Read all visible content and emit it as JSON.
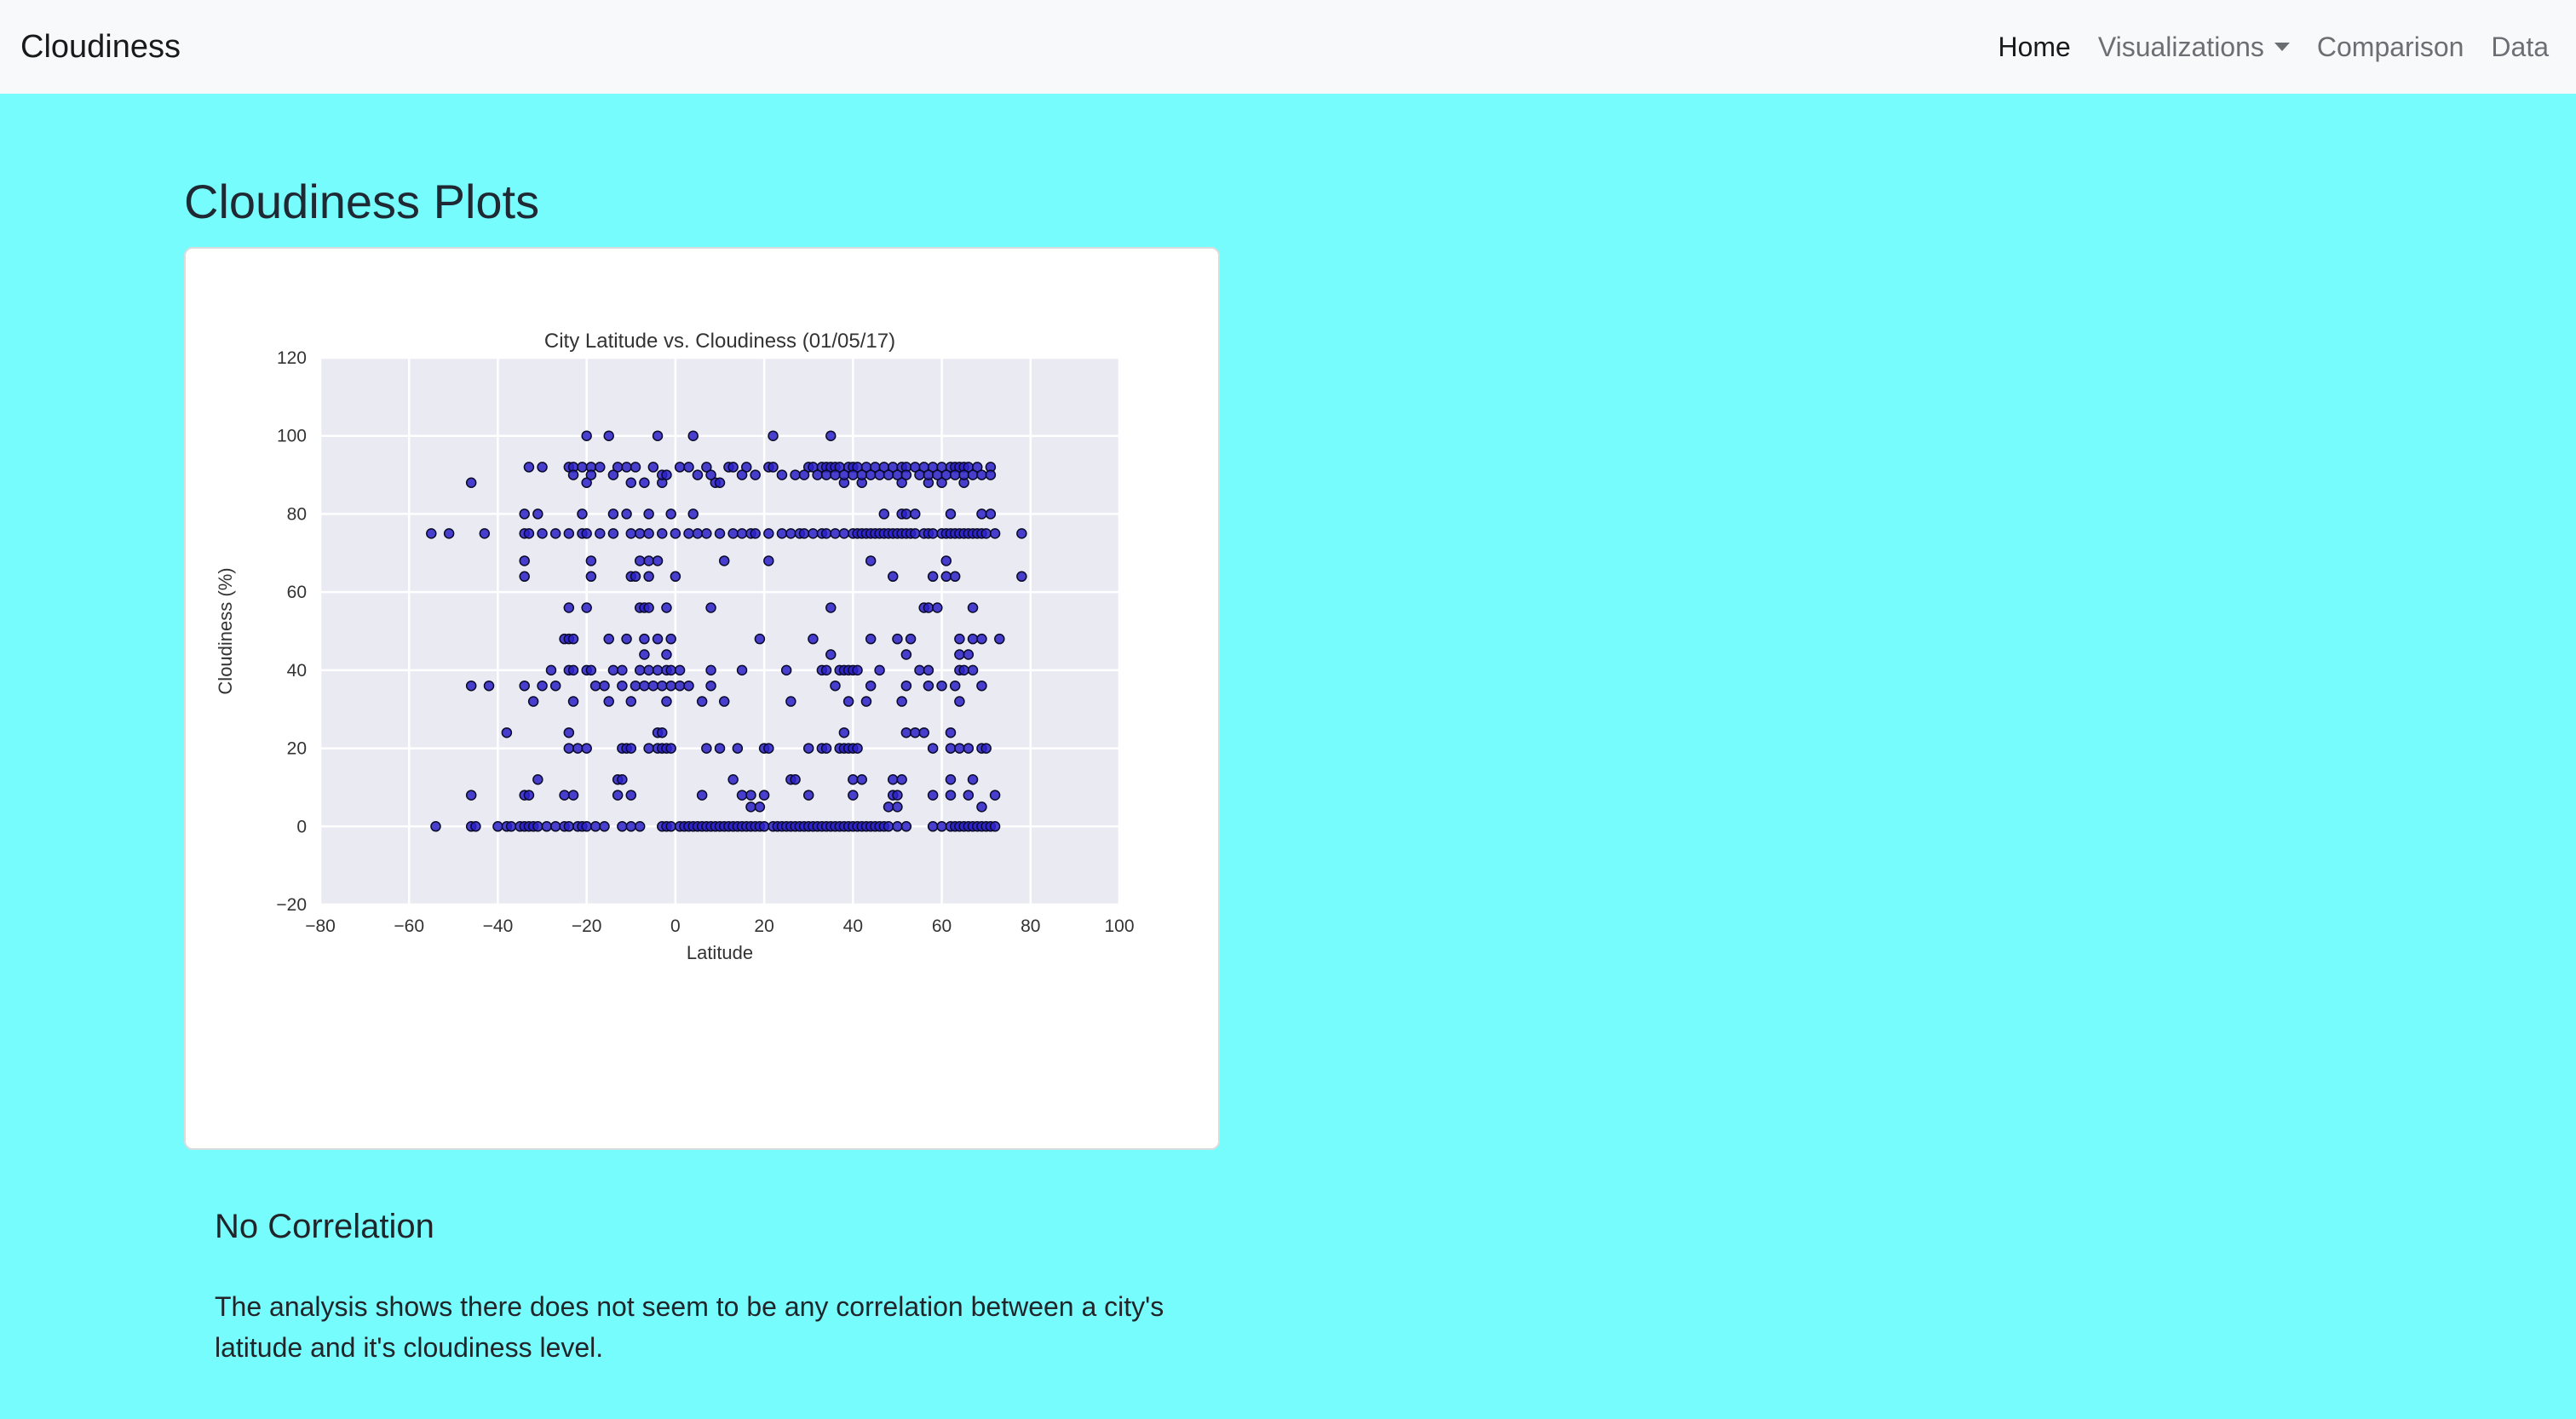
{
  "navbar": {
    "brand": "Cloudiness",
    "links": {
      "home": "Home",
      "visualizations": "Visualizations",
      "comparison": "Comparison",
      "data": "Data"
    }
  },
  "page": {
    "title": "Cloudiness Plots"
  },
  "card": {
    "title": "No Correlation",
    "text": "The analysis shows there does not seem to be any correlation between a city's latitude and it's cloudiness level."
  },
  "colors": {
    "background": "#76fcfd",
    "navbar": "#f8f9fa",
    "plot_bg": "#eaeaf2",
    "point_fill": "#2a20c8",
    "point_edge": "#0a0a2a"
  },
  "chart_data": {
    "type": "scatter",
    "title": "City Latitude vs. Cloudiness (01/05/17)",
    "xlabel": "Latitude",
    "ylabel": "Cloudiness (%)",
    "xlim": [
      -80,
      100
    ],
    "ylim": [
      -20,
      120
    ],
    "xticks": [
      "−80",
      "−60",
      "−40",
      "−20",
      "0",
      "20",
      "40",
      "60",
      "80",
      "100"
    ],
    "yticks": [
      "−20",
      "0",
      "20",
      "40",
      "60",
      "80",
      "100",
      "120"
    ],
    "grid": true,
    "legend": "none",
    "points": [
      [
        -54,
        0
      ],
      [
        -46,
        0
      ],
      [
        -45,
        0
      ],
      [
        -40,
        0
      ],
      [
        -38,
        0
      ],
      [
        -37,
        0
      ],
      [
        -35,
        0
      ],
      [
        -34,
        0
      ],
      [
        -33,
        0
      ],
      [
        -32,
        0
      ],
      [
        -31,
        0
      ],
      [
        -29,
        0
      ],
      [
        -27,
        0
      ],
      [
        -25,
        0
      ],
      [
        -24,
        0
      ],
      [
        -22,
        0
      ],
      [
        -21,
        0
      ],
      [
        -20,
        0
      ],
      [
        -18,
        0
      ],
      [
        -16,
        0
      ],
      [
        -12,
        0
      ],
      [
        -10,
        0
      ],
      [
        -8,
        0
      ],
      [
        -3,
        0
      ],
      [
        -2,
        0
      ],
      [
        -1,
        0
      ],
      [
        1,
        0
      ],
      [
        2,
        0
      ],
      [
        3,
        0
      ],
      [
        4,
        0
      ],
      [
        5,
        0
      ],
      [
        6,
        0
      ],
      [
        7,
        0
      ],
      [
        8,
        0
      ],
      [
        9,
        0
      ],
      [
        10,
        0
      ],
      [
        11,
        0
      ],
      [
        12,
        0
      ],
      [
        13,
        0
      ],
      [
        14,
        0
      ],
      [
        15,
        0
      ],
      [
        16,
        0
      ],
      [
        17,
        0
      ],
      [
        18,
        0
      ],
      [
        19,
        0
      ],
      [
        20,
        0
      ],
      [
        22,
        0
      ],
      [
        23,
        0
      ],
      [
        24,
        0
      ],
      [
        25,
        0
      ],
      [
        26,
        0
      ],
      [
        27,
        0
      ],
      [
        28,
        0
      ],
      [
        29,
        0
      ],
      [
        30,
        0
      ],
      [
        31,
        0
      ],
      [
        32,
        0
      ],
      [
        33,
        0
      ],
      [
        34,
        0
      ],
      [
        35,
        0
      ],
      [
        36,
        0
      ],
      [
        37,
        0
      ],
      [
        38,
        0
      ],
      [
        39,
        0
      ],
      [
        40,
        0
      ],
      [
        41,
        0
      ],
      [
        42,
        0
      ],
      [
        43,
        0
      ],
      [
        44,
        0
      ],
      [
        45,
        0
      ],
      [
        46,
        0
      ],
      [
        47,
        0
      ],
      [
        48,
        0
      ],
      [
        50,
        0
      ],
      [
        52,
        0
      ],
      [
        58,
        0
      ],
      [
        60,
        0
      ],
      [
        62,
        0
      ],
      [
        63,
        0
      ],
      [
        64,
        0
      ],
      [
        65,
        0
      ],
      [
        66,
        0
      ],
      [
        67,
        0
      ],
      [
        68,
        0
      ],
      [
        69,
        0
      ],
      [
        70,
        0
      ],
      [
        71,
        0
      ],
      [
        72,
        0
      ],
      [
        -46,
        8
      ],
      [
        -34,
        8
      ],
      [
        -33,
        8
      ],
      [
        -25,
        8
      ],
      [
        -23,
        8
      ],
      [
        -13,
        8
      ],
      [
        -10,
        8
      ],
      [
        6,
        8
      ],
      [
        15,
        8
      ],
      [
        17,
        8
      ],
      [
        20,
        8
      ],
      [
        30,
        8
      ],
      [
        40,
        8
      ],
      [
        49,
        8
      ],
      [
        50,
        8
      ],
      [
        58,
        8
      ],
      [
        62,
        8
      ],
      [
        66,
        8
      ],
      [
        72,
        8
      ],
      [
        -31,
        12
      ],
      [
        -13,
        12
      ],
      [
        -12,
        12
      ],
      [
        13,
        12
      ],
      [
        26,
        12
      ],
      [
        27,
        12
      ],
      [
        40,
        12
      ],
      [
        42,
        12
      ],
      [
        49,
        12
      ],
      [
        51,
        12
      ],
      [
        62,
        12
      ],
      [
        67,
        12
      ],
      [
        17,
        5
      ],
      [
        19,
        5
      ],
      [
        48,
        5
      ],
      [
        50,
        5
      ],
      [
        69,
        5
      ],
      [
        -38,
        24
      ],
      [
        -24,
        24
      ],
      [
        -4,
        24
      ],
      [
        -3,
        24
      ],
      [
        38,
        24
      ],
      [
        52,
        24
      ],
      [
        54,
        24
      ],
      [
        56,
        24
      ],
      [
        62,
        24
      ],
      [
        -24,
        20
      ],
      [
        -22,
        20
      ],
      [
        -20,
        20
      ],
      [
        -12,
        20
      ],
      [
        -11,
        20
      ],
      [
        -10,
        20
      ],
      [
        -6,
        20
      ],
      [
        -4,
        20
      ],
      [
        -3,
        20
      ],
      [
        -2,
        20
      ],
      [
        -1,
        20
      ],
      [
        7,
        20
      ],
      [
        10,
        20
      ],
      [
        14,
        20
      ],
      [
        20,
        20
      ],
      [
        21,
        20
      ],
      [
        30,
        20
      ],
      [
        33,
        20
      ],
      [
        34,
        20
      ],
      [
        37,
        20
      ],
      [
        38,
        20
      ],
      [
        39,
        20
      ],
      [
        40,
        20
      ],
      [
        41,
        20
      ],
      [
        58,
        20
      ],
      [
        62,
        20
      ],
      [
        64,
        20
      ],
      [
        66,
        20
      ],
      [
        69,
        20
      ],
      [
        70,
        20
      ],
      [
        -46,
        36
      ],
      [
        -42,
        36
      ],
      [
        -34,
        36
      ],
      [
        -30,
        36
      ],
      [
        -27,
        36
      ],
      [
        -18,
        36
      ],
      [
        -16,
        36
      ],
      [
        -12,
        36
      ],
      [
        -9,
        36
      ],
      [
        -7,
        36
      ],
      [
        -5,
        36
      ],
      [
        -3,
        36
      ],
      [
        -1,
        36
      ],
      [
        1,
        36
      ],
      [
        3,
        36
      ],
      [
        8,
        36
      ],
      [
        36,
        36
      ],
      [
        44,
        36
      ],
      [
        52,
        36
      ],
      [
        57,
        36
      ],
      [
        60,
        36
      ],
      [
        63,
        36
      ],
      [
        69,
        36
      ],
      [
        -32,
        32
      ],
      [
        -23,
        32
      ],
      [
        -15,
        32
      ],
      [
        -10,
        32
      ],
      [
        -2,
        32
      ],
      [
        6,
        32
      ],
      [
        11,
        32
      ],
      [
        26,
        32
      ],
      [
        39,
        32
      ],
      [
        43,
        32
      ],
      [
        51,
        32
      ],
      [
        64,
        32
      ],
      [
        -28,
        40
      ],
      [
        -24,
        40
      ],
      [
        -23,
        40
      ],
      [
        -20,
        40
      ],
      [
        -19,
        40
      ],
      [
        -14,
        40
      ],
      [
        -12,
        40
      ],
      [
        -8,
        40
      ],
      [
        -6,
        40
      ],
      [
        -4,
        40
      ],
      [
        -2,
        40
      ],
      [
        -1,
        40
      ],
      [
        1,
        40
      ],
      [
        8,
        40
      ],
      [
        15,
        40
      ],
      [
        25,
        40
      ],
      [
        33,
        40
      ],
      [
        34,
        40
      ],
      [
        37,
        40
      ],
      [
        38,
        40
      ],
      [
        39,
        40
      ],
      [
        40,
        40
      ],
      [
        41,
        40
      ],
      [
        46,
        40
      ],
      [
        55,
        40
      ],
      [
        57,
        40
      ],
      [
        64,
        40
      ],
      [
        65,
        40
      ],
      [
        67,
        40
      ],
      [
        -25,
        48
      ],
      [
        -24,
        48
      ],
      [
        -23,
        48
      ],
      [
        -15,
        48
      ],
      [
        -11,
        48
      ],
      [
        -7,
        48
      ],
      [
        -4,
        48
      ],
      [
        -1,
        48
      ],
      [
        19,
        48
      ],
      [
        31,
        48
      ],
      [
        44,
        48
      ],
      [
        50,
        48
      ],
      [
        53,
        48
      ],
      [
        64,
        48
      ],
      [
        67,
        48
      ],
      [
        69,
        48
      ],
      [
        73,
        48
      ],
      [
        -7,
        44
      ],
      [
        -2,
        44
      ],
      [
        35,
        44
      ],
      [
        52,
        44
      ],
      [
        64,
        44
      ],
      [
        66,
        44
      ],
      [
        -24,
        56
      ],
      [
        -20,
        56
      ],
      [
        -8,
        56
      ],
      [
        -7,
        56
      ],
      [
        -6,
        56
      ],
      [
        -2,
        56
      ],
      [
        8,
        56
      ],
      [
        35,
        56
      ],
      [
        56,
        56
      ],
      [
        57,
        56
      ],
      [
        59,
        56
      ],
      [
        67,
        56
      ],
      [
        -34,
        64
      ],
      [
        -19,
        64
      ],
      [
        -10,
        64
      ],
      [
        -9,
        64
      ],
      [
        -6,
        64
      ],
      [
        0,
        64
      ],
      [
        49,
        64
      ],
      [
        58,
        64
      ],
      [
        61,
        64
      ],
      [
        63,
        64
      ],
      [
        78,
        64
      ],
      [
        -34,
        68
      ],
      [
        -19,
        68
      ],
      [
        -8,
        68
      ],
      [
        -6,
        68
      ],
      [
        -4,
        68
      ],
      [
        11,
        68
      ],
      [
        21,
        68
      ],
      [
        44,
        68
      ],
      [
        61,
        68
      ],
      [
        -55,
        75
      ],
      [
        -51,
        75
      ],
      [
        -43,
        75
      ],
      [
        -34,
        75
      ],
      [
        -33,
        75
      ],
      [
        -30,
        75
      ],
      [
        -27,
        75
      ],
      [
        -24,
        75
      ],
      [
        -21,
        75
      ],
      [
        -20,
        75
      ],
      [
        -17,
        75
      ],
      [
        -14,
        75
      ],
      [
        -10,
        75
      ],
      [
        -8,
        75
      ],
      [
        -6,
        75
      ],
      [
        -3,
        75
      ],
      [
        0,
        75
      ],
      [
        3,
        75
      ],
      [
        5,
        75
      ],
      [
        7,
        75
      ],
      [
        10,
        75
      ],
      [
        13,
        75
      ],
      [
        15,
        75
      ],
      [
        17,
        75
      ],
      [
        18,
        75
      ],
      [
        21,
        75
      ],
      [
        24,
        75
      ],
      [
        26,
        75
      ],
      [
        28,
        75
      ],
      [
        29,
        75
      ],
      [
        31,
        75
      ],
      [
        33,
        75
      ],
      [
        34,
        75
      ],
      [
        36,
        75
      ],
      [
        38,
        75
      ],
      [
        40,
        75
      ],
      [
        41,
        75
      ],
      [
        42,
        75
      ],
      [
        43,
        75
      ],
      [
        44,
        75
      ],
      [
        45,
        75
      ],
      [
        46,
        75
      ],
      [
        47,
        75
      ],
      [
        48,
        75
      ],
      [
        49,
        75
      ],
      [
        50,
        75
      ],
      [
        51,
        75
      ],
      [
        52,
        75
      ],
      [
        53,
        75
      ],
      [
        54,
        75
      ],
      [
        56,
        75
      ],
      [
        57,
        75
      ],
      [
        58,
        75
      ],
      [
        60,
        75
      ],
      [
        61,
        75
      ],
      [
        62,
        75
      ],
      [
        63,
        75
      ],
      [
        64,
        75
      ],
      [
        65,
        75
      ],
      [
        66,
        75
      ],
      [
        67,
        75
      ],
      [
        68,
        75
      ],
      [
        69,
        75
      ],
      [
        70,
        75
      ],
      [
        72,
        75
      ],
      [
        78,
        75
      ],
      [
        -34,
        80
      ],
      [
        -31,
        80
      ],
      [
        -21,
        80
      ],
      [
        -14,
        80
      ],
      [
        -11,
        80
      ],
      [
        -6,
        80
      ],
      [
        -1,
        80
      ],
      [
        4,
        80
      ],
      [
        47,
        80
      ],
      [
        51,
        80
      ],
      [
        52,
        80
      ],
      [
        54,
        80
      ],
      [
        62,
        80
      ],
      [
        69,
        80
      ],
      [
        71,
        80
      ],
      [
        -46,
        88
      ],
      [
        -20,
        88
      ],
      [
        -10,
        88
      ],
      [
        -7,
        88
      ],
      [
        -3,
        88
      ],
      [
        9,
        88
      ],
      [
        10,
        88
      ],
      [
        38,
        88
      ],
      [
        42,
        88
      ],
      [
        51,
        88
      ],
      [
        57,
        88
      ],
      [
        60,
        88
      ],
      [
        65,
        88
      ],
      [
        -33,
        92
      ],
      [
        -30,
        92
      ],
      [
        -24,
        92
      ],
      [
        -23,
        92
      ],
      [
        -21,
        92
      ],
      [
        -19,
        92
      ],
      [
        -17,
        92
      ],
      [
        -13,
        92
      ],
      [
        -11,
        92
      ],
      [
        -9,
        92
      ],
      [
        -5,
        92
      ],
      [
        1,
        92
      ],
      [
        3,
        92
      ],
      [
        7,
        92
      ],
      [
        12,
        92
      ],
      [
        13,
        92
      ],
      [
        16,
        92
      ],
      [
        21,
        92
      ],
      [
        22,
        92
      ],
      [
        30,
        92
      ],
      [
        31,
        92
      ],
      [
        33,
        92
      ],
      [
        34,
        92
      ],
      [
        35,
        92
      ],
      [
        36,
        92
      ],
      [
        37,
        92
      ],
      [
        39,
        92
      ],
      [
        40,
        92
      ],
      [
        41,
        92
      ],
      [
        43,
        92
      ],
      [
        45,
        92
      ],
      [
        47,
        92
      ],
      [
        49,
        92
      ],
      [
        51,
        92
      ],
      [
        52,
        92
      ],
      [
        54,
        92
      ],
      [
        56,
        92
      ],
      [
        58,
        92
      ],
      [
        60,
        92
      ],
      [
        62,
        92
      ],
      [
        63,
        92
      ],
      [
        64,
        92
      ],
      [
        65,
        92
      ],
      [
        66,
        92
      ],
      [
        68,
        92
      ],
      [
        71,
        92
      ],
      [
        -23,
        90
      ],
      [
        -19,
        90
      ],
      [
        -14,
        90
      ],
      [
        -3,
        90
      ],
      [
        -2,
        90
      ],
      [
        5,
        90
      ],
      [
        8,
        90
      ],
      [
        15,
        90
      ],
      [
        18,
        90
      ],
      [
        24,
        90
      ],
      [
        27,
        90
      ],
      [
        29,
        90
      ],
      [
        32,
        90
      ],
      [
        34,
        90
      ],
      [
        36,
        90
      ],
      [
        38,
        90
      ],
      [
        40,
        90
      ],
      [
        42,
        90
      ],
      [
        44,
        90
      ],
      [
        46,
        90
      ],
      [
        48,
        90
      ],
      [
        50,
        90
      ],
      [
        52,
        90
      ],
      [
        55,
        90
      ],
      [
        57,
        90
      ],
      [
        59,
        90
      ],
      [
        61,
        90
      ],
      [
        63,
        90
      ],
      [
        65,
        90
      ],
      [
        67,
        90
      ],
      [
        69,
        90
      ],
      [
        71,
        90
      ],
      [
        -20,
        100
      ],
      [
        -15,
        100
      ],
      [
        -4,
        100
      ],
      [
        4,
        100
      ],
      [
        22,
        100
      ],
      [
        35,
        100
      ]
    ]
  }
}
